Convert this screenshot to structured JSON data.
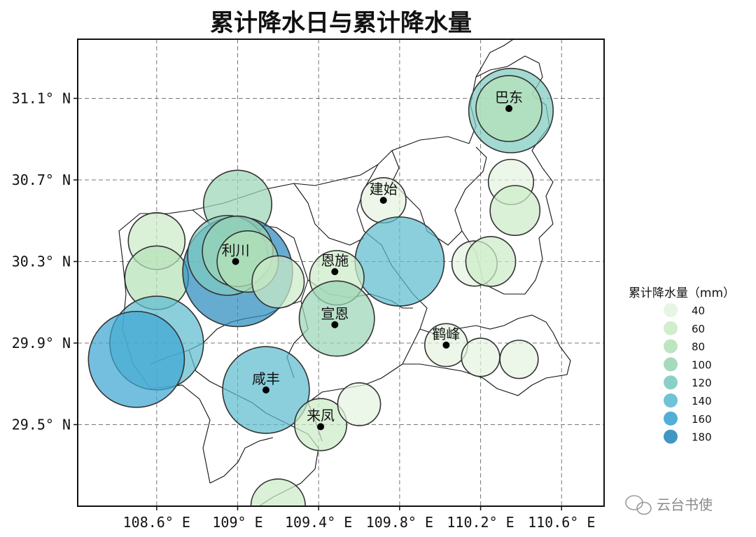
{
  "title": "累计降水日与累计降水量",
  "x_ticks": [
    {
      "value": 108.6,
      "label": "108.6° E"
    },
    {
      "value": 109.0,
      "label": "109° E"
    },
    {
      "value": 109.4,
      "label": "109.4° E"
    },
    {
      "value": 109.8,
      "label": "109.8° E"
    },
    {
      "value": 110.2,
      "label": "110.2° E"
    },
    {
      "value": 110.6,
      "label": "110.6° E"
    }
  ],
  "y_ticks": [
    {
      "value": 31.1,
      "label": "31.1° N"
    },
    {
      "value": 30.7,
      "label": "30.7° N"
    },
    {
      "value": 30.3,
      "label": "30.3° N"
    },
    {
      "value": 29.9,
      "label": "29.9° N"
    },
    {
      "value": 29.5,
      "label": "29.5° N"
    }
  ],
  "extent": {
    "lon": [
      108.21,
      110.81
    ],
    "lat": [
      29.1,
      31.39
    ]
  },
  "cities": [
    {
      "name": "巴东",
      "lon": 110.34,
      "lat": 31.05
    },
    {
      "name": "建始",
      "lon": 109.72,
      "lat": 30.6
    },
    {
      "name": "利川",
      "lon": 108.99,
      "lat": 30.3
    },
    {
      "name": "恩施",
      "lon": 109.48,
      "lat": 30.25
    },
    {
      "name": "宣恩",
      "lon": 109.48,
      "lat": 29.99
    },
    {
      "name": "鹤峰",
      "lon": 110.03,
      "lat": 29.89
    },
    {
      "name": "咸丰",
      "lon": 109.14,
      "lat": 29.67
    },
    {
      "name": "来凤",
      "lon": 109.41,
      "lat": 29.49
    }
  ],
  "legend": {
    "title": "累计降水量（mm）",
    "items": [
      {
        "label": "40",
        "color": "#e4f4e1"
      },
      {
        "label": "60",
        "color": "#ccebc8"
      },
      {
        "label": "80",
        "color": "#b6e2b9"
      },
      {
        "label": "100",
        "color": "#9bd6b6"
      },
      {
        "label": "120",
        "color": "#7ecbbf"
      },
      {
        "label": "140",
        "color": "#5ebcd0"
      },
      {
        "label": "160",
        "color": "#3ea6d3"
      },
      {
        "label": "180",
        "color": "#2b8cbe"
      }
    ]
  },
  "chart_data": {
    "type": "scatter",
    "title": "累计降水日与累计降水量",
    "color_variable": "累计降水量（mm）",
    "points": [
      {
        "lon": 110.35,
        "lat": 31.04,
        "value": 130
      },
      {
        "lon": 110.34,
        "lat": 31.05,
        "value": 90
      },
      {
        "lon": 110.35,
        "lat": 30.69,
        "value": 45
      },
      {
        "lon": 110.37,
        "lat": 30.55,
        "value": 55
      },
      {
        "lon": 109.72,
        "lat": 30.6,
        "value": 45
      },
      {
        "lon": 109.8,
        "lat": 30.3,
        "value": 140
      },
      {
        "lon": 109.49,
        "lat": 30.22,
        "value": 65
      },
      {
        "lon": 109.49,
        "lat": 30.02,
        "value": 110
      },
      {
        "lon": 110.17,
        "lat": 30.29,
        "value": 45
      },
      {
        "lon": 110.25,
        "lat": 30.3,
        "value": 55
      },
      {
        "lon": 110.03,
        "lat": 29.89,
        "value": 40
      },
      {
        "lon": 110.2,
        "lat": 29.83,
        "value": 30
      },
      {
        "lon": 110.39,
        "lat": 29.82,
        "value": 30
      },
      {
        "lon": 109.0,
        "lat": 30.58,
        "value": 95
      },
      {
        "lon": 108.6,
        "lat": 30.4,
        "value": 70
      },
      {
        "lon": 108.6,
        "lat": 30.22,
        "value": 85
      },
      {
        "lon": 109.0,
        "lat": 30.25,
        "value": 185
      },
      {
        "lon": 108.95,
        "lat": 30.33,
        "value": 120
      },
      {
        "lon": 109.0,
        "lat": 30.35,
        "value": 100
      },
      {
        "lon": 109.05,
        "lat": 30.3,
        "value": 80
      },
      {
        "lon": 109.2,
        "lat": 30.2,
        "value": 60
      },
      {
        "lon": 108.6,
        "lat": 29.9,
        "value": 150
      },
      {
        "lon": 108.5,
        "lat": 29.82,
        "value": 155
      },
      {
        "lon": 109.14,
        "lat": 29.67,
        "value": 135
      },
      {
        "lon": 109.41,
        "lat": 29.5,
        "value": 60
      },
      {
        "lon": 109.6,
        "lat": 29.6,
        "value": 40
      },
      {
        "lon": 109.2,
        "lat": 29.1,
        "value": 65
      }
    ]
  },
  "watermark": "云台书使"
}
